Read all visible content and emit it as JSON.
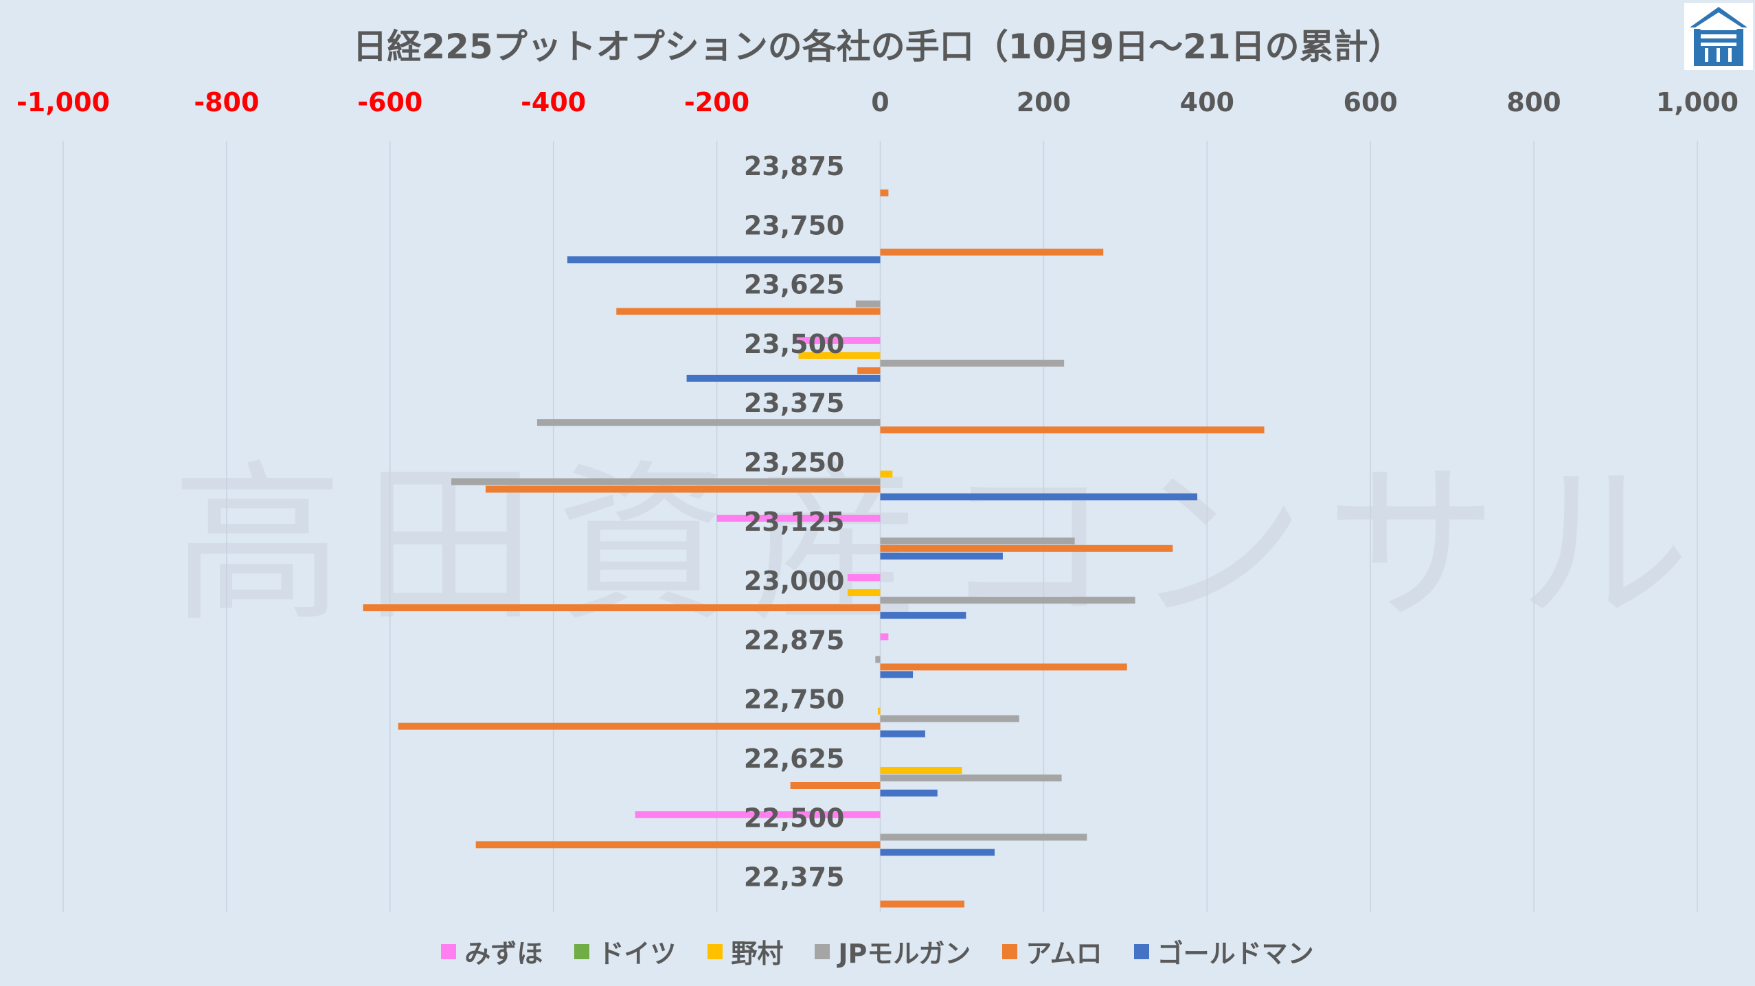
{
  "title": "日経225プットオプションの各社の手口（10月9日～21日の累計）",
  "watermark": "高田資産コンサル",
  "chart_data": {
    "type": "bar",
    "orientation": "horizontal",
    "title": "日経225プットオプションの各社の手口（10月9日～21日の累計）",
    "xlim": [
      -1000,
      1000
    ],
    "x_ticks": [
      "-1,000",
      "-800",
      "-600",
      "-400",
      "-200",
      "0",
      "200",
      "400",
      "600",
      "800",
      "1,000"
    ],
    "negative_tick_color": "#ff0000",
    "grid": true,
    "legend_position": "bottom",
    "categories": [
      "23,875",
      "23,750",
      "23,625",
      "23,500",
      "23,375",
      "23,250",
      "23,125",
      "23,000",
      "22,875",
      "22,750",
      "22,625",
      "22,500",
      "22,375"
    ],
    "series": [
      {
        "name": "みずほ",
        "color": "#ff7ff0",
        "values": [
          0,
          0,
          0,
          -105,
          0,
          0,
          -200,
          -40,
          10,
          0,
          0,
          -300,
          0
        ]
      },
      {
        "name": "ドイツ",
        "color": "#70ad47",
        "values": [
          0,
          0,
          0,
          0,
          0,
          0,
          0,
          0,
          0,
          0,
          0,
          0,
          0
        ]
      },
      {
        "name": "野村",
        "color": "#ffc000",
        "values": [
          0,
          0,
          0,
          -100,
          0,
          15,
          0,
          -40,
          0,
          -3,
          100,
          0,
          0
        ]
      },
      {
        "name": "JPモルガン",
        "color": "#a5a5a5",
        "values": [
          0,
          0,
          -30,
          225,
          -420,
          -525,
          238,
          312,
          -6,
          170,
          222,
          253,
          0
        ]
      },
      {
        "name": "アムロ",
        "color": "#ed7d31",
        "values": [
          10,
          273,
          -323,
          -28,
          470,
          -483,
          358,
          -633,
          302,
          -590,
          -110,
          -495,
          103
        ]
      },
      {
        "name": "ゴールドマン",
        "color": "#4472c4",
        "values": [
          0,
          -383,
          0,
          -237,
          0,
          388,
          150,
          105,
          40,
          55,
          70,
          140,
          0
        ]
      }
    ]
  }
}
